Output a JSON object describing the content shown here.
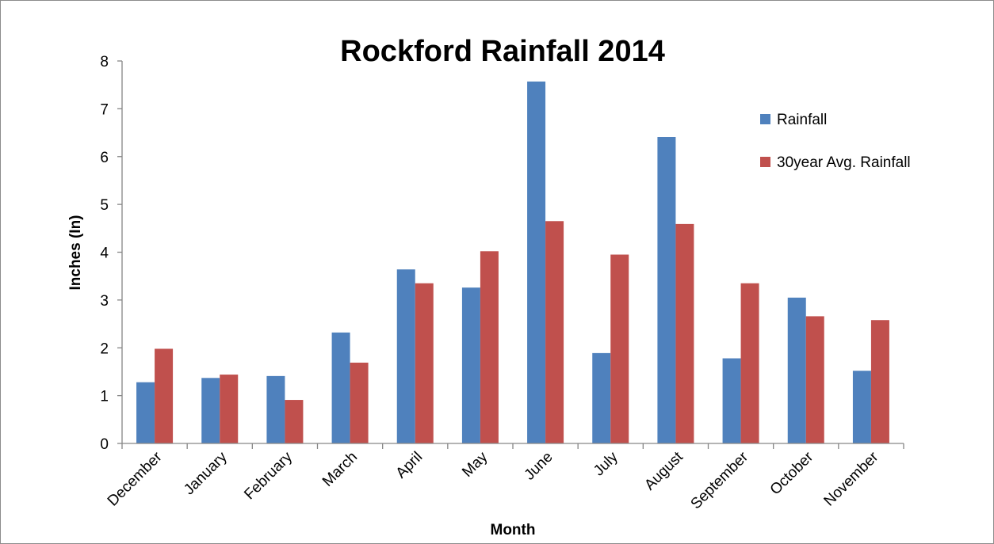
{
  "chart_data": {
    "type": "bar",
    "title": "Rockford Rainfall 2014",
    "xlabel": "Month",
    "ylabel": "Inches (In)",
    "ylim": [
      0,
      8
    ],
    "yticks": [
      "0",
      "1",
      "2",
      "3",
      "4",
      "5",
      "6",
      "7",
      "8"
    ],
    "grid": false,
    "legend_position": "top-right",
    "categories": [
      "December",
      "January",
      "February",
      "March",
      "April",
      "May",
      "June",
      "July",
      "August",
      "September",
      "October",
      "November"
    ],
    "series": [
      {
        "name": "Rainfall",
        "color": "#4F81BD",
        "values": [
          1.28,
          1.37,
          1.41,
          2.32,
          3.64,
          3.26,
          7.57,
          1.89,
          6.41,
          1.78,
          3.05,
          1.52
        ]
      },
      {
        "name": "30year Avg. Rainfall",
        "color": "#C0504D",
        "values": [
          1.98,
          1.44,
          0.91,
          1.69,
          3.35,
          4.02,
          4.65,
          3.95,
          4.59,
          3.35,
          2.66,
          2.58
        ]
      }
    ]
  }
}
